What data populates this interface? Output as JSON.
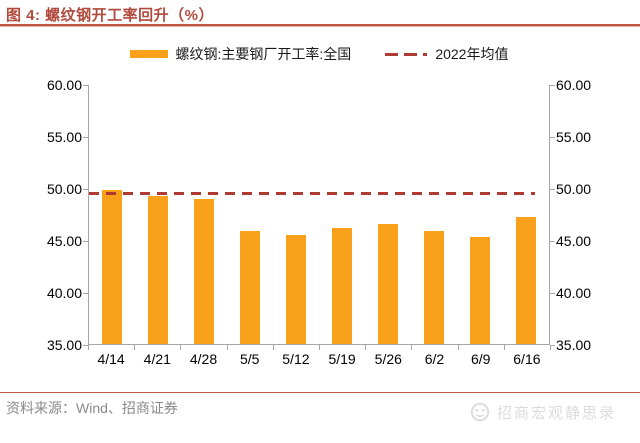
{
  "figure": {
    "title": "图 4: 螺纹钢开工率回升（%）",
    "source": "资料来源：Wind、招商证券",
    "watermark": "招商宏观静思录"
  },
  "legend": [
    {
      "swatch": "bar",
      "label": "螺纹钢:主要钢厂开工率:全国",
      "color": "#F9A11B"
    },
    {
      "swatch": "dashed-line",
      "label": "2022年均值",
      "color": "#AE3B32"
    }
  ],
  "chart_data": {
    "type": "bar",
    "title": "螺纹钢开工率回升（%）",
    "categories": [
      "4/14",
      "4/21",
      "4/28",
      "5/5",
      "5/12",
      "5/19",
      "5/26",
      "6/2",
      "6/9",
      "6/16"
    ],
    "series": [
      {
        "name": "螺纹钢:主要钢厂开工率:全国",
        "type": "bar",
        "color": "#F9A11B",
        "values": [
          49.8,
          49.2,
          48.9,
          45.9,
          45.5,
          46.2,
          46.5,
          45.9,
          45.3,
          47.2
        ]
      },
      {
        "name": "2022年均值",
        "type": "dashed-line",
        "color": "#AE3B32",
        "value": 49.6
      }
    ],
    "ylim": [
      35,
      60
    ],
    "ytick_labels": [
      "60.00",
      "55.00",
      "50.00",
      "45.00",
      "40.00",
      "35.00"
    ],
    "dual_axis": true,
    "grid": false,
    "legend_position": "top"
  },
  "colors": {
    "title_red": "#B1493D",
    "bar_orange": "#F9A11B",
    "mean_dash_red": "#AE3B32",
    "axis_gray": "#A6A6A6",
    "divider_red": "#C4584C",
    "source_gray": "#8A8A8A",
    "watermark_gray": "#DBDBDB"
  }
}
